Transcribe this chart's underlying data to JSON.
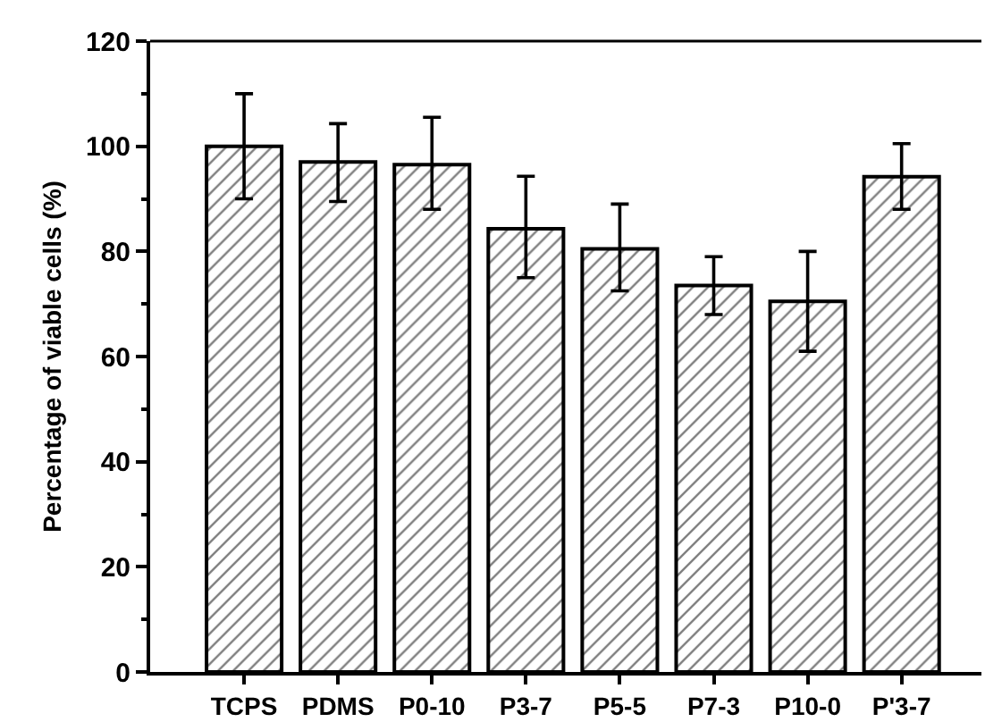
{
  "chart_data": {
    "type": "bar",
    "ylabel": "Percentage of viable cells (%)",
    "categories": [
      "TCPS",
      "PDMS",
      "P0-10",
      "P3-7",
      "P5-5",
      "P7-3",
      "P10-0",
      "P'3-7"
    ],
    "values": [
      100,
      97,
      96.5,
      84.3,
      80.5,
      73.5,
      70.5,
      94.2
    ],
    "errors": [
      [
        90,
        110
      ],
      [
        89.5,
        104.3
      ],
      [
        88,
        105.5
      ],
      [
        75,
        94.3
      ],
      [
        72.5,
        89
      ],
      [
        68,
        79
      ],
      [
        61,
        80
      ],
      [
        88,
        100.5
      ]
    ],
    "color": "#000000",
    "ylim": [
      0,
      120
    ],
    "yticks": [
      0,
      20,
      40,
      60,
      80,
      100,
      120
    ]
  }
}
